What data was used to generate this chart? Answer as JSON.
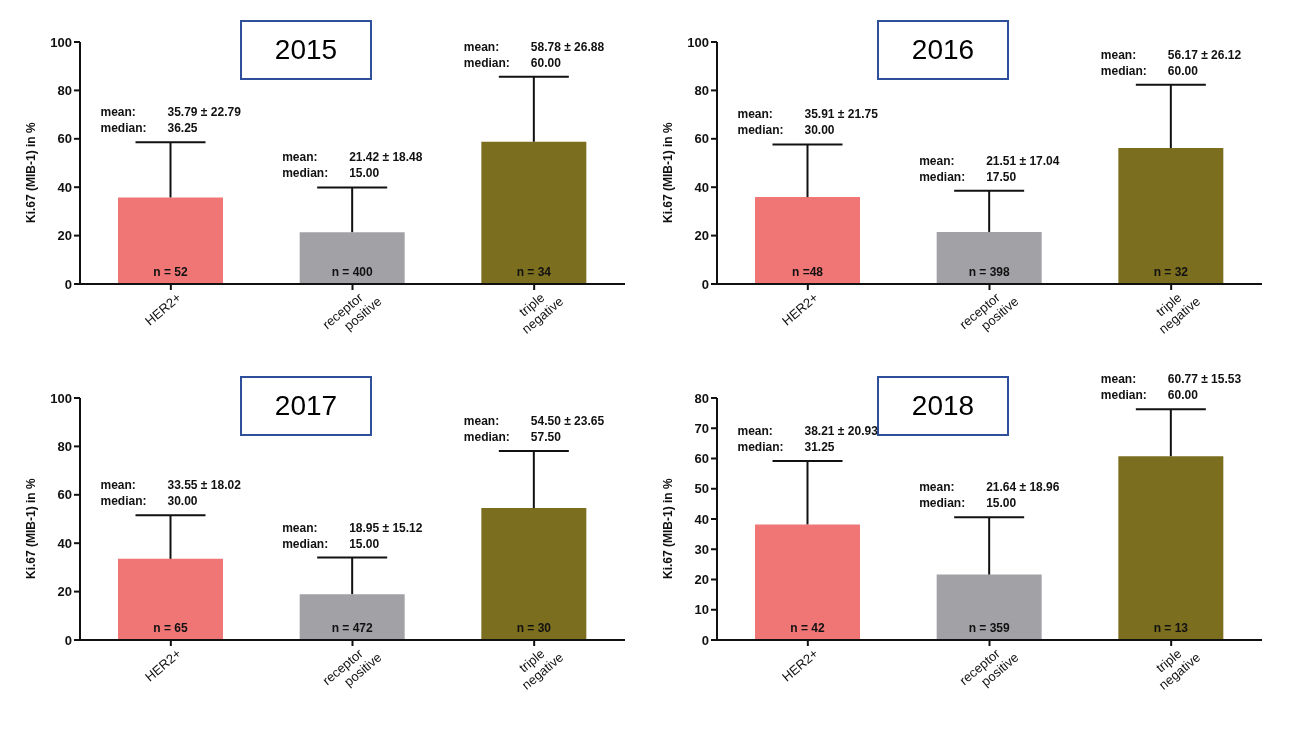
{
  "chart_data": [
    {
      "type": "bar",
      "title": "2015",
      "ylabel": "Ki.67 (MIB-1) in %",
      "categories": [
        "HER2+",
        "receptor positive",
        "triple negative"
      ],
      "values": [
        35.79,
        21.42,
        58.78
      ],
      "errors": [
        [
          35.79,
          58.58
        ],
        [
          21.42,
          39.9
        ],
        [
          58.78,
          85.66
        ]
      ],
      "colors": [
        "#f07575",
        "#a2a1a6",
        "#7b6e1f"
      ],
      "ylim": [
        0,
        100
      ],
      "yticks": [
        0,
        20,
        40,
        60,
        80,
        100
      ],
      "grid": false,
      "annotations": [
        "mean: 35.79 ± 22.79",
        "median: 36.25",
        "n = 52",
        "mean: 21.42 ± 18.48",
        "median: 15.00",
        "n = 400",
        "mean: 58.78 ± 26.88",
        "median: 60.00",
        "n = 34"
      ]
    },
    {
      "type": "bar",
      "title": "2016",
      "ylabel": "Ki.67 (MIB-1) in %",
      "categories": [
        "HER2+",
        "receptor positive",
        "triple negative"
      ],
      "values": [
        35.91,
        21.51,
        56.17
      ],
      "errors": [
        [
          35.91,
          57.66
        ],
        [
          21.51,
          38.55
        ],
        [
          56.17,
          82.29
        ]
      ],
      "colors": [
        "#f07575",
        "#a2a1a6",
        "#7b6e1f"
      ],
      "ylim": [
        0,
        100
      ],
      "yticks": [
        0,
        20,
        40,
        60,
        80,
        100
      ],
      "grid": false,
      "annotations": [
        "mean: 35.91 ± 21.75",
        "median: 30.00",
        "n =48",
        "mean: 21.51 ± 17.04",
        "median: 17.50",
        "n = 398",
        "mean: 56.17 ± 26.12",
        "median: 60.00",
        "n = 32"
      ]
    },
    {
      "type": "bar",
      "title": "2017",
      "ylabel": "Ki.67 (MIB-1) in %",
      "categories": [
        "HER2+",
        "receptor positive",
        "triple negative"
      ],
      "values": [
        33.55,
        18.95,
        54.5
      ],
      "errors": [
        [
          33.55,
          51.57
        ],
        [
          18.95,
          34.07
        ],
        [
          54.5,
          78.15
        ]
      ],
      "colors": [
        "#f07575",
        "#a2a1a6",
        "#7b6e1f"
      ],
      "ylim": [
        0,
        100
      ],
      "yticks": [
        0,
        20,
        40,
        60,
        80,
        100
      ],
      "grid": false,
      "annotations": [
        "mean: 33.55 ± 18.02",
        "median: 30.00",
        "n = 65",
        "mean: 18.95 ± 15.12",
        "median: 15.00",
        "n = 472",
        "mean: 54.50 ± 23.65",
        "median: 57.50",
        "n = 30"
      ]
    },
    {
      "type": "bar",
      "title": "2018",
      "ylabel": "Ki.67 (MIB-1) in %",
      "categories": [
        "HER2+",
        "receptor positive",
        "triple negative"
      ],
      "values": [
        38.21,
        21.64,
        60.77
      ],
      "errors": [
        [
          38.21,
          59.14
        ],
        [
          21.64,
          40.6
        ],
        [
          60.77,
          76.3
        ]
      ],
      "colors": [
        "#f07575",
        "#a2a1a6",
        "#7b6e1f"
      ],
      "ylim": [
        0,
        80
      ],
      "yticks": [
        0,
        10,
        20,
        30,
        40,
        50,
        60,
        70,
        80
      ],
      "grid": false,
      "annotations": [
        "mean: 38.21 ± 20.93",
        "median: 31.25",
        "n = 42",
        "mean: 21.64 ± 18.96",
        "median: 15.00",
        "n = 359",
        "mean: 60.77 ± 15.53",
        "median: 60.00",
        "n = 13"
      ]
    }
  ]
}
